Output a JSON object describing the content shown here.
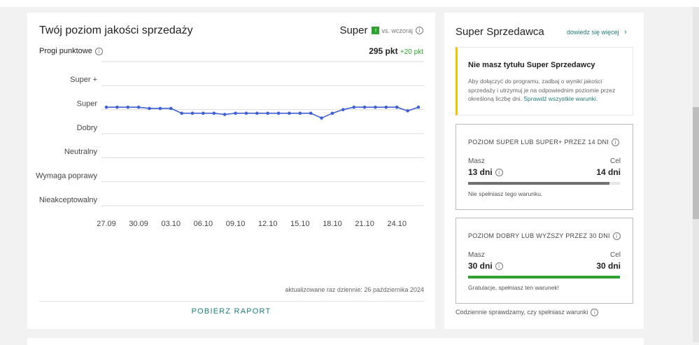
{
  "chart_data": {
    "type": "line",
    "title": "Twój poziom jakości sprzedaży",
    "categories": [
      "27.09",
      null,
      null,
      "30.09",
      null,
      null,
      "03.10",
      null,
      null,
      "06.10",
      null,
      null,
      "09.10",
      null,
      null,
      "12.10",
      null,
      null,
      "15.10",
      null,
      null,
      "18.10",
      null,
      null,
      "21.10",
      null,
      null,
      "24.10",
      null,
      null
    ],
    "series": [
      {
        "name": "Poziom",
        "color": "#3f5fd4",
        "values": [
          4.1,
          4.1,
          4.1,
          4.1,
          4.05,
          4.05,
          4.05,
          3.85,
          3.85,
          3.85,
          3.85,
          3.8,
          3.85,
          3.85,
          3.85,
          3.85,
          3.85,
          3.85,
          3.85,
          3.85,
          3.65,
          3.85,
          4.0,
          4.1,
          4.1,
          4.1,
          4.1,
          4.1,
          3.95,
          4.1
        ]
      }
    ],
    "ylim": [
      0,
      6
    ],
    "yticks": [
      {
        "value": 0,
        "label": "Nieakceptowalny"
      },
      {
        "value": 1,
        "label": "Wymaga poprawy"
      },
      {
        "value": 2,
        "label": "Neutralny"
      },
      {
        "value": 3,
        "label": "Dobry"
      },
      {
        "value": 4,
        "label": "Super"
      },
      {
        "value": 5,
        "label": "Super +"
      }
    ],
    "grid": true
  },
  "panel": {
    "level": "Super",
    "comparison": "vs. wczoraj",
    "points_label": "Progi punktowe",
    "points": "295 pkt",
    "change": "+20 pkt",
    "updated": "aktualizowane raz dziennie: 26 października 2024",
    "button": "POBIERZ RAPORT"
  },
  "sidebar": {
    "title": "Super Sprzedawca",
    "link": "dowiedz się więcej",
    "notice": {
      "title": "Nie masz tytułu Super Sprzedawcy",
      "text": "Aby dołączyć do programu, zadbaj o wyniki jakości sprzedaży i utrzymuj je na odpowiednim poziomie przez określoną liczbę dni.",
      "link": "Sprawdź wszystkie warunki."
    },
    "conditions": [
      {
        "title": "POZIOM SUPER LUB SUPER+ PRZEZ 14 DNI",
        "have_label": "Masz",
        "goal_label": "Cel",
        "current": 13,
        "current_text": "13 dni",
        "goal": 14,
        "goal_text": "14 dni",
        "status": "Nie spełniasz tego warunku.",
        "color": "#707070"
      },
      {
        "title": "POZIOM DOBRY LUB WYŻSZY PRZEZ 30 DNI",
        "have_label": "Masz",
        "goal_label": "Cel",
        "current": 30,
        "current_text": "30 dni",
        "goal": 30,
        "goal_text": "30 dni",
        "status": "Gratulacje, spełniasz ten warunek!",
        "color": "#2fa32f"
      }
    ],
    "footer": "Codziennie sprawdzamy, czy spełniasz warunki"
  }
}
